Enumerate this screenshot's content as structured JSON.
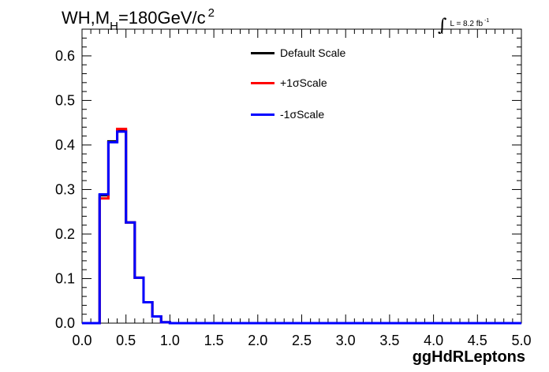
{
  "header": {
    "title_main": "WH,M",
    "title_sub": "H",
    "title_tail": "=180GeV/c",
    "title_sup": "2",
    "lumi_text": "L = 8.2 fb",
    "lumi_sup": "-1"
  },
  "chart_data": {
    "type": "line",
    "style": "step-histogram",
    "title": "WH,M_H=180GeV/c^2",
    "xlabel": "ggHdRLeptons",
    "ylabel": "",
    "xlim": [
      0.0,
      5.0
    ],
    "ylim": [
      0.0,
      0.66
    ],
    "x_ticks": [
      "0.0",
      "0.5",
      "1.0",
      "1.5",
      "2.0",
      "2.5",
      "3.0",
      "3.5",
      "4.0",
      "4.5",
      "5.0"
    ],
    "y_ticks": [
      "0.0",
      "0.1",
      "0.2",
      "0.3",
      "0.4",
      "0.5",
      "0.6"
    ],
    "x_tick_values": [
      0.0,
      0.5,
      1.0,
      1.5,
      2.0,
      2.5,
      3.0,
      3.5,
      4.0,
      4.5,
      5.0
    ],
    "y_tick_values": [
      0.0,
      0.1,
      0.2,
      0.3,
      0.4,
      0.5,
      0.6
    ],
    "bin_edges": [
      0.0,
      0.1,
      0.2,
      0.3,
      0.4,
      0.5,
      0.6,
      0.7,
      0.8,
      0.9,
      1.0,
      1.1,
      1.2,
      1.3,
      1.4,
      1.5,
      1.6,
      1.7,
      1.8,
      1.9,
      2.0,
      2.1,
      2.2,
      2.3,
      2.4,
      2.5,
      2.6,
      2.7,
      2.8,
      2.9,
      3.0,
      3.1,
      3.2,
      3.3,
      3.4,
      3.5,
      3.6,
      3.7,
      3.8,
      3.9,
      4.0,
      4.1,
      4.2,
      4.3,
      4.4,
      4.5,
      4.6,
      4.7,
      4.8,
      4.9,
      5.0
    ],
    "legend_position": "top-center",
    "series": [
      {
        "name": "Default Scale",
        "color": "#000000",
        "values": [
          0,
          0,
          0.287,
          0.408,
          0.432,
          0.226,
          0.102,
          0.047,
          0.015,
          0.002,
          0,
          0,
          0,
          0,
          0,
          0,
          0,
          0,
          0,
          0,
          0,
          0,
          0,
          0,
          0,
          0,
          0,
          0,
          0,
          0,
          0,
          0,
          0,
          0,
          0,
          0,
          0,
          0,
          0,
          0,
          0,
          0,
          0,
          0,
          0,
          0,
          0,
          0,
          0,
          0
        ]
      },
      {
        "name": "+1σScale",
        "color": "#ff0000",
        "values": [
          0,
          0,
          0.28,
          0.406,
          0.436,
          0.226,
          0.102,
          0.047,
          0.015,
          0.002,
          0,
          0,
          0,
          0,
          0,
          0,
          0,
          0,
          0,
          0,
          0,
          0,
          0,
          0,
          0,
          0,
          0,
          0,
          0,
          0,
          0,
          0,
          0,
          0,
          0,
          0,
          0,
          0,
          0,
          0,
          0,
          0,
          0,
          0,
          0,
          0,
          0,
          0,
          0,
          0
        ]
      },
      {
        "name": "-1σScale",
        "color": "#0000ff",
        "values": [
          0,
          0,
          0.289,
          0.406,
          0.43,
          0.226,
          0.102,
          0.047,
          0.015,
          0.002,
          0,
          0,
          0,
          0,
          0,
          0,
          0,
          0,
          0,
          0,
          0,
          0,
          0,
          0,
          0,
          0,
          0,
          0,
          0,
          0,
          0,
          0,
          0,
          0,
          0,
          0,
          0,
          0,
          0,
          0,
          0,
          0,
          0,
          0,
          0,
          0,
          0,
          0,
          0,
          0
        ]
      }
    ]
  }
}
